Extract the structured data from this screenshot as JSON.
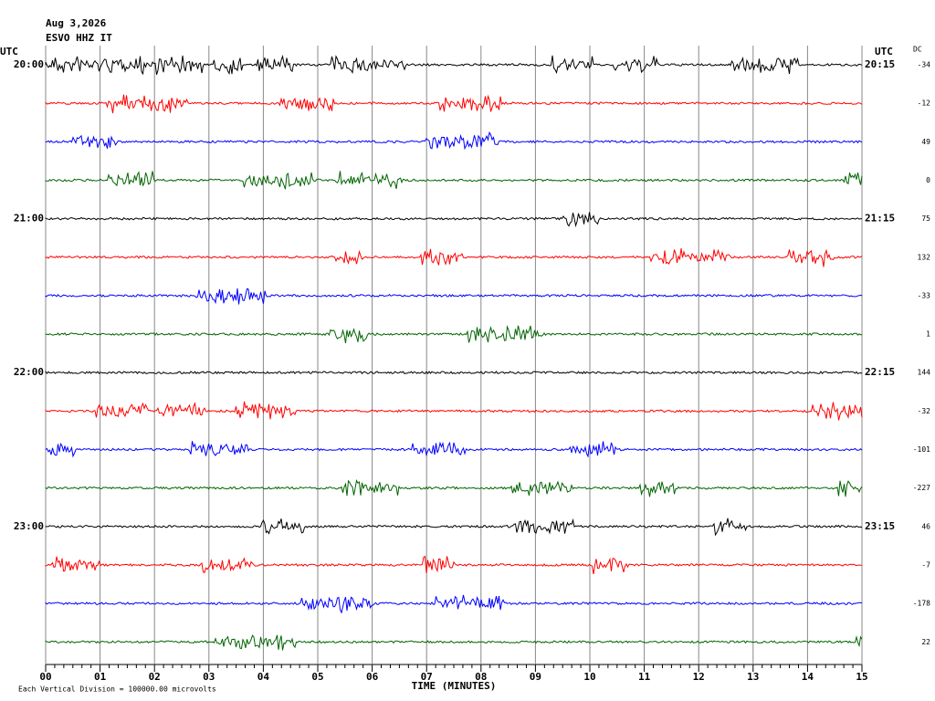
{
  "header": {
    "date": "Aug 3,2026",
    "station": "ESVO HHZ IT"
  },
  "left_axis_title": "UTC",
  "right_axis_title": "UTC",
  "dc_title": "DC",
  "rows": [
    {
      "left": "20:00",
      "right": "20:15",
      "dc": "-34",
      "color": "#000000"
    },
    {
      "left": null,
      "right": null,
      "dc": "-12",
      "color": "#ff0000"
    },
    {
      "left": null,
      "right": null,
      "dc": "49",
      "color": "#0000ff"
    },
    {
      "left": null,
      "right": null,
      "dc": "0",
      "color": "#006400"
    },
    {
      "left": "21:00",
      "right": "21:15",
      "dc": "75",
      "color": "#000000"
    },
    {
      "left": null,
      "right": null,
      "dc": "132",
      "color": "#ff0000"
    },
    {
      "left": null,
      "right": null,
      "dc": "-33",
      "color": "#0000ff"
    },
    {
      "left": null,
      "right": null,
      "dc": "1",
      "color": "#006400"
    },
    {
      "left": "22:00",
      "right": "22:15",
      "dc": "144",
      "color": "#000000"
    },
    {
      "left": null,
      "right": null,
      "dc": "-32",
      "color": "#ff0000"
    },
    {
      "left": null,
      "right": null,
      "dc": "-101",
      "color": "#0000ff"
    },
    {
      "left": null,
      "right": null,
      "dc": "-227",
      "color": "#006400"
    },
    {
      "left": "23:00",
      "right": "23:15",
      "dc": "46",
      "color": "#000000"
    },
    {
      "left": null,
      "right": null,
      "dc": "-7",
      "color": "#ff0000"
    },
    {
      "left": null,
      "right": null,
      "dc": "-178",
      "color": "#0000ff"
    },
    {
      "left": null,
      "right": null,
      "dc": "22",
      "color": "#006400"
    }
  ],
  "x_ticks": [
    "00",
    "01",
    "02",
    "03",
    "04",
    "05",
    "06",
    "07",
    "08",
    "09",
    "10",
    "11",
    "12",
    "13",
    "14",
    "15"
  ],
  "x_title": "TIME (MINUTES)",
  "footer": "Each Vertical Division = 100000.00 microvolts"
}
